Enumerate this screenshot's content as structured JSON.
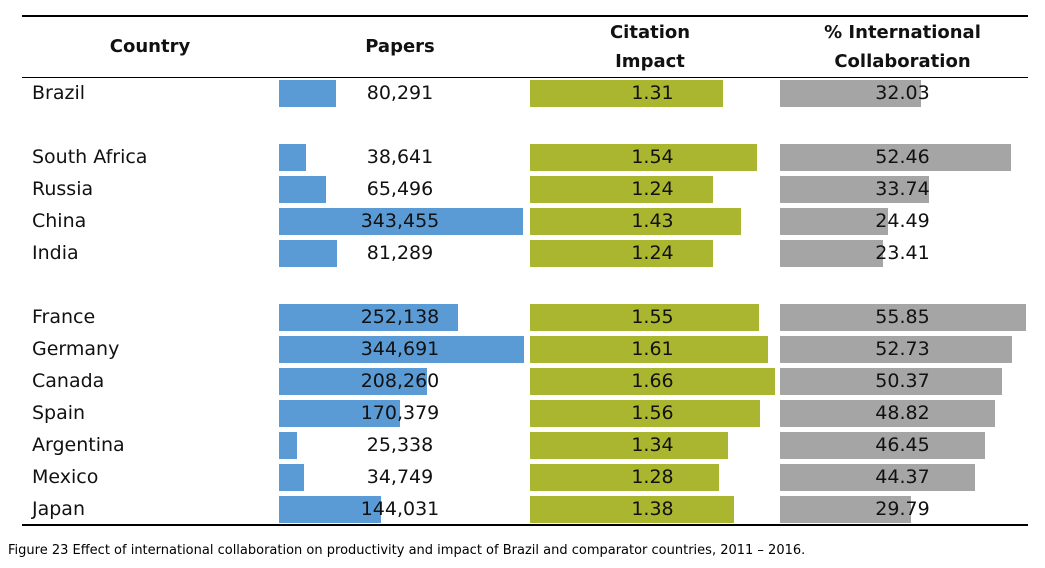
{
  "chart_data": {
    "type": "table",
    "columns": [
      "Country",
      "Papers",
      "Citation Impact",
      "% International Collaboration"
    ],
    "header_lines": {
      "country": [
        "Country"
      ],
      "papers": [
        "Papers"
      ],
      "citation": [
        "Citation",
        "Impact"
      ],
      "collab": [
        "% International",
        "Collaboration"
      ]
    },
    "groups": [
      [
        {
          "country": "Brazil",
          "papers": 80291,
          "papers_label": "80,291",
          "citation": 1.31,
          "citation_label": "1.31",
          "collab": 32.03,
          "collab_label": "32.03"
        }
      ],
      [
        {
          "country": "South Africa",
          "papers": 38641,
          "papers_label": "38,641",
          "citation": 1.54,
          "citation_label": "1.54",
          "collab": 52.46,
          "collab_label": "52.46"
        },
        {
          "country": "Russia",
          "papers": 65496,
          "papers_label": "65,496",
          "citation": 1.24,
          "citation_label": "1.24",
          "collab": 33.74,
          "collab_label": "33.74"
        },
        {
          "country": "China",
          "papers": 343455,
          "papers_label": "343,455",
          "citation": 1.43,
          "citation_label": "1.43",
          "collab": 24.49,
          "collab_label": "24.49"
        },
        {
          "country": "India",
          "papers": 81289,
          "papers_label": "81,289",
          "citation": 1.24,
          "citation_label": "1.24",
          "collab": 23.41,
          "collab_label": "23.41"
        }
      ],
      [
        {
          "country": "France",
          "papers": 252138,
          "papers_label": "252,138",
          "citation": 1.55,
          "citation_label": "1.55",
          "collab": 55.85,
          "collab_label": "55.85"
        },
        {
          "country": "Germany",
          "papers": 344691,
          "papers_label": "344,691",
          "citation": 1.61,
          "citation_label": "1.61",
          "collab": 52.73,
          "collab_label": "52.73"
        },
        {
          "country": "Canada",
          "papers": 208260,
          "papers_label": "208,260",
          "citation": 1.66,
          "citation_label": "1.66",
          "collab": 50.37,
          "collab_label": "50.37"
        },
        {
          "country": "Spain",
          "papers": 170379,
          "papers_label": "170,379",
          "citation": 1.56,
          "citation_label": "1.56",
          "collab": 48.82,
          "collab_label": "48.82"
        },
        {
          "country": "Argentina",
          "papers": 25338,
          "papers_label": "25,338",
          "citation": 1.34,
          "citation_label": "1.34",
          "collab": 46.45,
          "collab_label": "46.45"
        },
        {
          "country": "Mexico",
          "papers": 34749,
          "papers_label": "34,749",
          "citation": 1.28,
          "citation_label": "1.28",
          "collab": 44.37,
          "collab_label": "44.37"
        },
        {
          "country": "Japan",
          "papers": 144031,
          "papers_label": "144,031",
          "citation": 1.38,
          "citation_label": "1.38",
          "collab": 29.79,
          "collab_label": "29.79"
        }
      ]
    ],
    "colors": {
      "papers": "#5b9bd5",
      "citation": "#aab62f",
      "collab": "#a5a5a5"
    },
    "caption": "Figure 23 Effect of international collaboration on productivity and impact of Brazil and comparator countries, 2011 – 2016."
  }
}
